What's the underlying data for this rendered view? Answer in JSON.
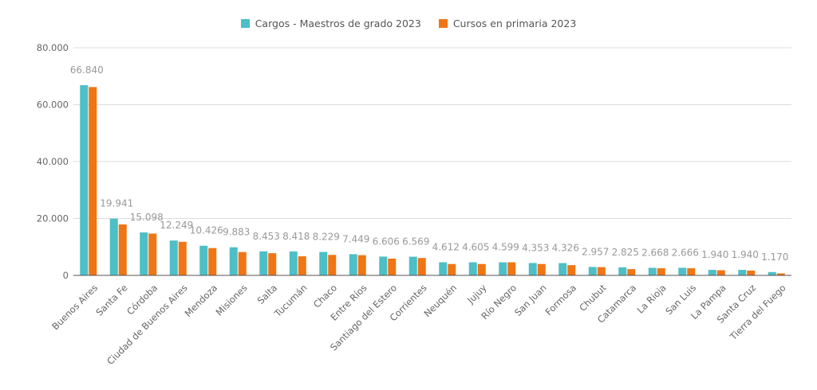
{
  "colors": {
    "series1": "#4dbfc6",
    "series2": "#f07515",
    "grid": "#dcdcdc",
    "axis": "#555555"
  },
  "chart_data": {
    "type": "bar",
    "ylim": [
      0,
      80000
    ],
    "grid": true,
    "legend_position": "top-center",
    "yticks": [
      0,
      20000,
      40000,
      60000,
      80000
    ],
    "ytick_labels": [
      "0",
      "20.000",
      "40.000",
      "60.000",
      "80.000"
    ],
    "categories": [
      "Buenos Aires",
      "Santa Fe",
      "Córdoba",
      "Ciudad de Buenos Aires",
      "Mendoza",
      "Misiones",
      "Salta",
      "Tucumán",
      "Chaco",
      "Entre Ríos",
      "Santiago del Estero",
      "Corrientes",
      "Neuquén",
      "Jujuy",
      "Río Negro",
      "San Juan",
      "Formosa",
      "Chubut",
      "Catamarca",
      "La Rioja",
      "San Luis",
      "La Pampa",
      "Santa Cruz",
      "Tierra del Fuego"
    ],
    "series": [
      {
        "name": "Cargos - Maestros de grado 2023",
        "values": [
          66840,
          19941,
          15098,
          12249,
          10426,
          9883,
          8453,
          8418,
          8229,
          7449,
          6606,
          6569,
          4612,
          4605,
          4599,
          4353,
          4326,
          2957,
          2825,
          2668,
          2666,
          1940,
          1940,
          1170
        ],
        "labels": [
          "66.840",
          "19.941",
          "15.098",
          "12.249",
          "10.426",
          "9.883",
          "8.453",
          "8.418",
          "8.229",
          "7.449",
          "6.606",
          "6.569",
          "4.612",
          "4.605",
          "4.599",
          "4.353",
          "4.326",
          "2.957",
          "2.825",
          "2.668",
          "2.666",
          "1.940",
          "1.940",
          "1.170"
        ]
      },
      {
        "name": "Cursos en primaria 2023",
        "values": [
          66200,
          17900,
          14700,
          11800,
          9600,
          8200,
          7800,
          6700,
          7200,
          7100,
          5900,
          6100,
          4000,
          4000,
          4600,
          4000,
          3600,
          2900,
          2200,
          2500,
          2500,
          1800,
          1700,
          700
        ]
      }
    ]
  }
}
